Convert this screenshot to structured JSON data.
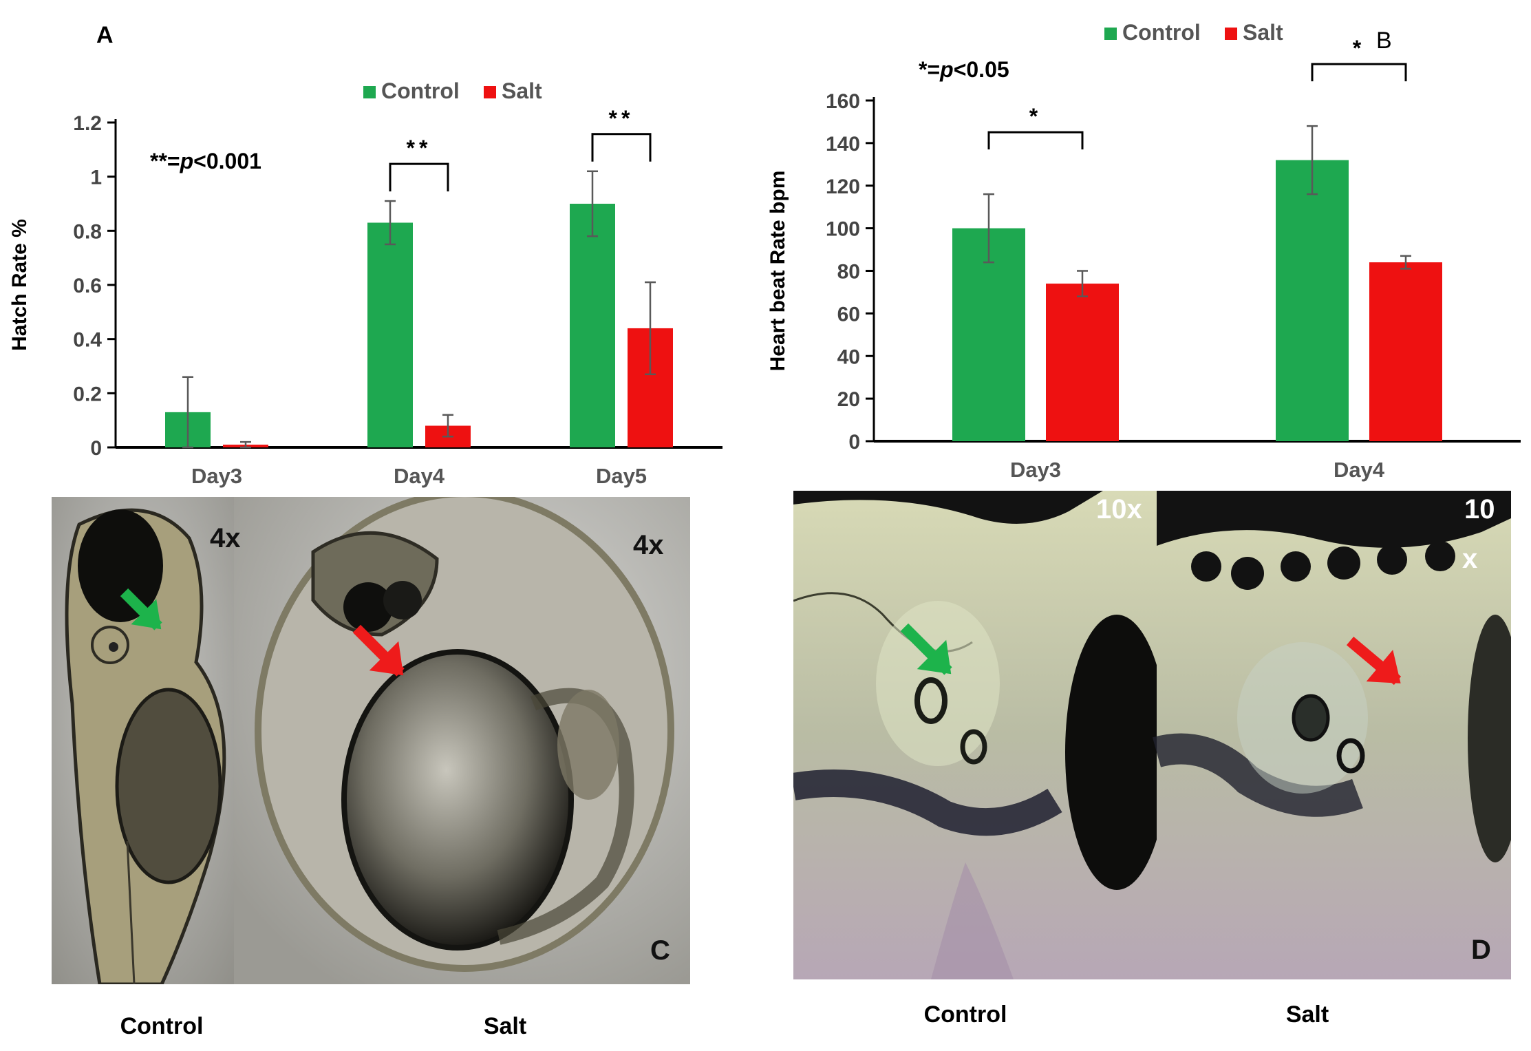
{
  "colors": {
    "control": "#1ea850",
    "salt": "#ee1111",
    "errorbar": "#595959",
    "axis": "#000000"
  },
  "panels": {
    "A": {
      "label": "A",
      "sig_note": {
        "stars": "**=",
        "p": "p",
        "rest": "<0.001"
      },
      "legend": [
        "Control",
        "Salt"
      ]
    },
    "B": {
      "label": "B",
      "sig_note": {
        "stars": "*=",
        "p": "p",
        "rest": "<0.05"
      },
      "legend": [
        "Control",
        "Salt"
      ]
    },
    "C": {
      "label": "C",
      "images": [
        {
          "name": "control-larva-4x",
          "mag": "4x",
          "caption": "Control",
          "arrow": "green"
        },
        {
          "name": "salt-embryo-4x",
          "mag": "4x",
          "caption": "Salt",
          "arrow": "red"
        }
      ]
    },
    "D": {
      "label": "D",
      "images": [
        {
          "name": "control-heart-10x",
          "mag": "10x",
          "caption": "Control",
          "arrow": "green"
        },
        {
          "name": "salt-heart-10x",
          "mag_line1": "10",
          "mag_line2": "x",
          "caption": "Salt",
          "arrow": "red"
        }
      ]
    }
  },
  "chart_data": [
    {
      "type": "bar",
      "panel": "A",
      "categories": [
        "Day3",
        "Day4",
        "Day5"
      ],
      "ylabel": "Hatch Rate %",
      "xlabel": "",
      "ylim": [
        0,
        1.2
      ],
      "yticks": [
        "0",
        "0.2",
        "0.4",
        "0.6",
        "0.8",
        "1",
        "1.2"
      ],
      "legend_position": "top",
      "series": [
        {
          "name": "Control",
          "values": [
            0.13,
            0.83,
            0.9
          ],
          "errors": [
            0.13,
            0.08,
            0.12
          ]
        },
        {
          "name": "Salt",
          "values": [
            0.01,
            0.08,
            0.44
          ],
          "errors": [
            0.01,
            0.04,
            0.17
          ]
        }
      ],
      "significance": [
        {
          "category": "Day4",
          "mark": "**"
        },
        {
          "category": "Day5",
          "mark": "**"
        }
      ]
    },
    {
      "type": "bar",
      "panel": "B",
      "categories": [
        "Day3",
        "Day4"
      ],
      "ylabel": "Heart beat Rate bpm",
      "xlabel": "",
      "ylim": [
        0,
        160
      ],
      "yticks": [
        "0",
        "20",
        "40",
        "60",
        "80",
        "100",
        "120",
        "140",
        "160"
      ],
      "legend_position": "top",
      "series": [
        {
          "name": "Control",
          "values": [
            100,
            132
          ],
          "errors": [
            16,
            16
          ]
        },
        {
          "name": "Salt",
          "values": [
            74,
            84
          ],
          "errors": [
            6,
            3
          ]
        }
      ],
      "significance": [
        {
          "category": "Day3",
          "mark": "*"
        },
        {
          "category": "Day4",
          "mark": "*"
        }
      ]
    }
  ]
}
